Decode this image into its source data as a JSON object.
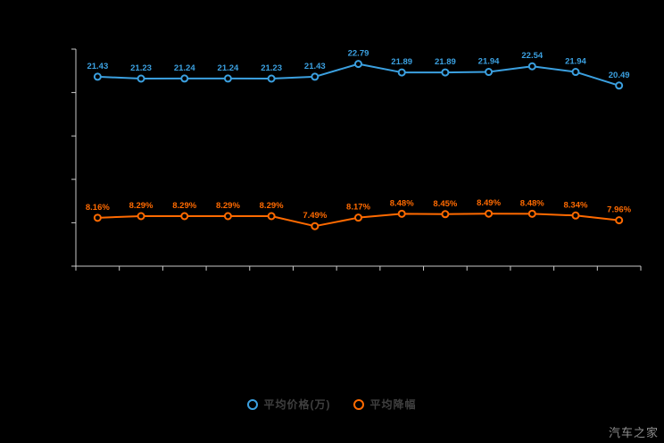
{
  "chart_data": {
    "type": "line",
    "x_point_count": 13,
    "x_tick_labels_visible": false,
    "y_tick_labels_visible": false,
    "grid": false,
    "legend_position": "bottom",
    "series": [
      {
        "name": "平均价格(万)",
        "color": "#3BA0E0",
        "values": [
          21.43,
          21.23,
          21.24,
          21.24,
          21.23,
          21.43,
          22.79,
          21.89,
          21.89,
          21.94,
          22.54,
          21.94,
          20.49
        ],
        "labels": [
          "21.43",
          "21.23",
          "21.24",
          "21.24",
          "21.23",
          "21.43",
          "22.79",
          "21.89",
          "21.89",
          "21.94",
          "22.54",
          "21.94",
          "20.49"
        ]
      },
      {
        "name": "平均降幅",
        "color": "#FF6A00",
        "values": [
          8.16,
          8.29,
          8.29,
          8.29,
          8.29,
          7.49,
          8.17,
          8.48,
          8.45,
          8.49,
          8.48,
          8.34,
          7.96
        ],
        "labels": [
          "8.16%",
          "8.29%",
          "8.29%",
          "8.29%",
          "8.29%",
          "7.49%",
          "8.17%",
          "8.48%",
          "8.45%",
          "8.49%",
          "8.48%",
          "8.34%",
          "7.96%"
        ]
      }
    ]
  },
  "legend": {
    "items": [
      {
        "label": "平均价格(万)",
        "color": "#3BA0E0"
      },
      {
        "label": "平均降幅",
        "color": "#FF6A00"
      }
    ]
  },
  "watermark": "汽车之家",
  "colors": {
    "background": "#000000",
    "axis": "#c9c9c9",
    "legend_text": "#3f3f3f",
    "watermark_text": "#8e8e8e"
  }
}
